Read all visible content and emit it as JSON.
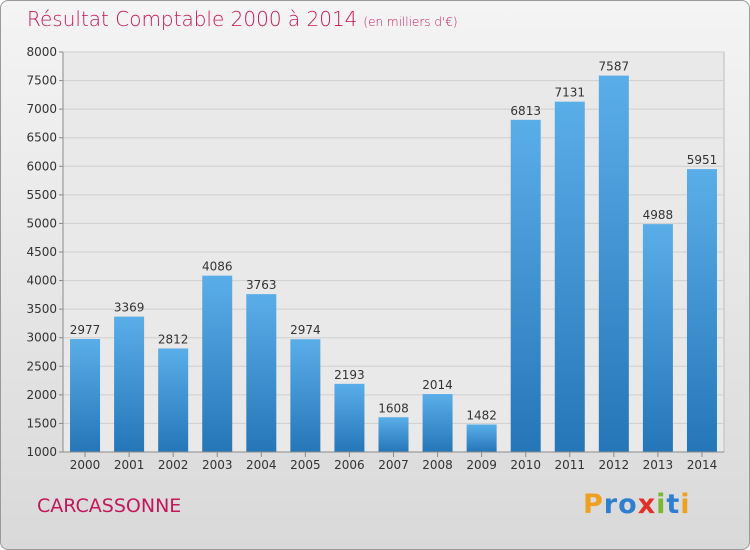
{
  "chart_data": {
    "type": "bar",
    "title": "Résultat Comptable 2000 à 2014",
    "subtitle": "(en milliers d'€)",
    "categories": [
      "2000",
      "2001",
      "2002",
      "2003",
      "2004",
      "2005",
      "2006",
      "2007",
      "2008",
      "2009",
      "2010",
      "2011",
      "2012",
      "2013",
      "2014"
    ],
    "values": [
      2977,
      3369,
      2812,
      4086,
      3763,
      2974,
      2193,
      1608,
      2014,
      1482,
      6813,
      7131,
      7587,
      4988,
      5951
    ],
    "ylim": [
      1000,
      8000
    ],
    "yticks": [
      1000,
      1500,
      2000,
      2500,
      3000,
      3500,
      4000,
      4500,
      5000,
      5500,
      6000,
      6500,
      7000,
      7500,
      8000
    ],
    "xlabel": "",
    "ylabel": "",
    "grid": true,
    "bar_color": "#3a8fd6"
  },
  "footer": {
    "city": "CARCASSONNE",
    "brand_letters": [
      "P",
      "r",
      "o",
      "x",
      "i",
      "t",
      "i"
    ],
    "brand_colors": [
      "#f0a020",
      "#2f7fd0",
      "#2f7fd0",
      "#e0302a",
      "#7ab82e",
      "#2f7fd0",
      "#f0a020"
    ]
  }
}
